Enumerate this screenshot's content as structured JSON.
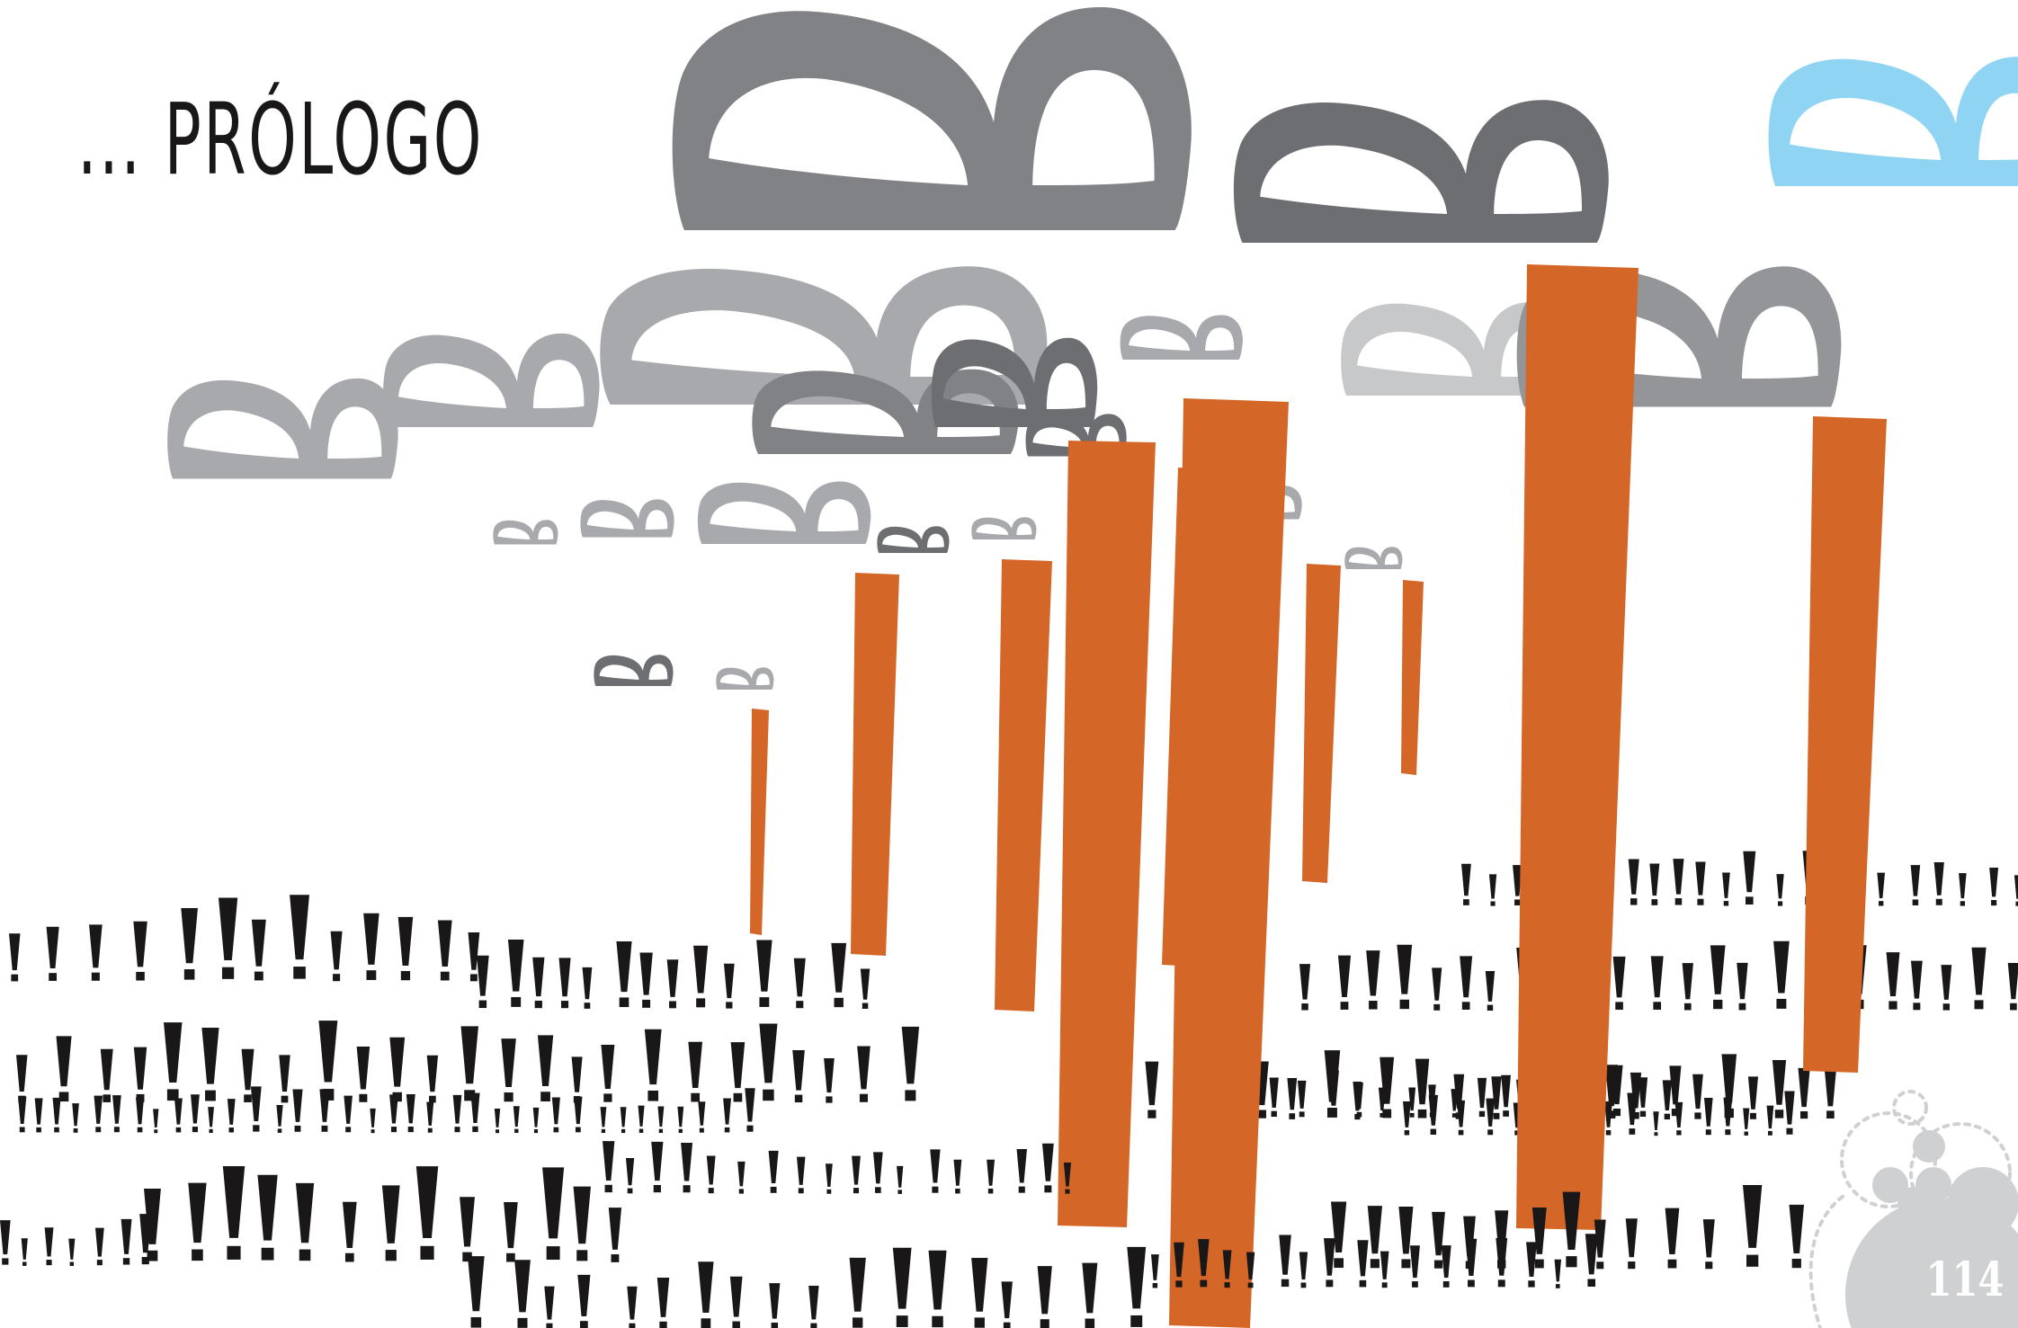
{
  "header": {
    "title": "... PRÓLOGO"
  },
  "footer": {
    "page_number": "114"
  },
  "colors": {
    "cloud_dark": "#6d6e71",
    "cloud_mid": "#808285",
    "cloud_light": "#a7a9ac",
    "cloud_pale": "#c7c8ca",
    "cloud_blue": "#8fd4f3",
    "trunk_orange": "#d46627",
    "grass_black": "#1a1718",
    "badge_grey": "#cfd0d2"
  },
  "illustration": {
    "cloud_shape": "letter-B",
    "trunk_shape": "orange-column",
    "grass_shape": "exclamation-mark"
  }
}
